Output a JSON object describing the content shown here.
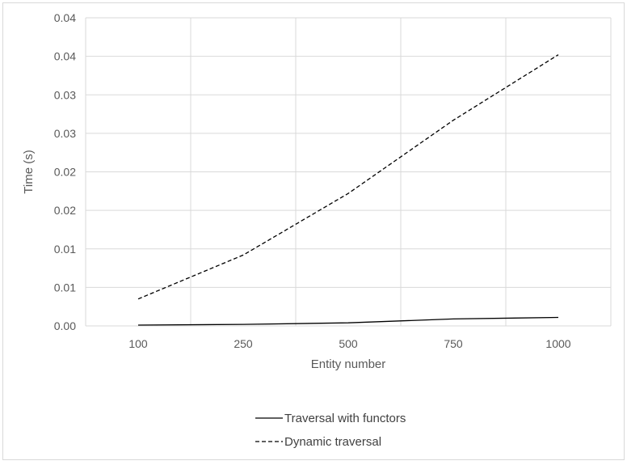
{
  "chart_data": {
    "type": "line",
    "title": "",
    "xlabel": "Entity number",
    "ylabel": "Time (s)",
    "categories": [
      "100",
      "250",
      "500",
      "750",
      "1000"
    ],
    "y_tick_labels": [
      "0.00",
      "0.01",
      "0.01",
      "0.02",
      "0.02",
      "0.03",
      "0.03",
      "0.04",
      "0.04"
    ],
    "ylim": [
      0,
      0.04
    ],
    "grid": true,
    "legend_position": "bottom",
    "series": [
      {
        "name": "Traversal with functors",
        "style": "solid",
        "color": "#000000",
        "values": [
          0.0001,
          0.0002,
          0.0004,
          0.0009,
          0.0011
        ]
      },
      {
        "name": "Dynamic traversal",
        "style": "dashed",
        "color": "#000000",
        "values": [
          0.0035,
          0.0092,
          0.0172,
          0.0267,
          0.0352
        ]
      }
    ]
  }
}
